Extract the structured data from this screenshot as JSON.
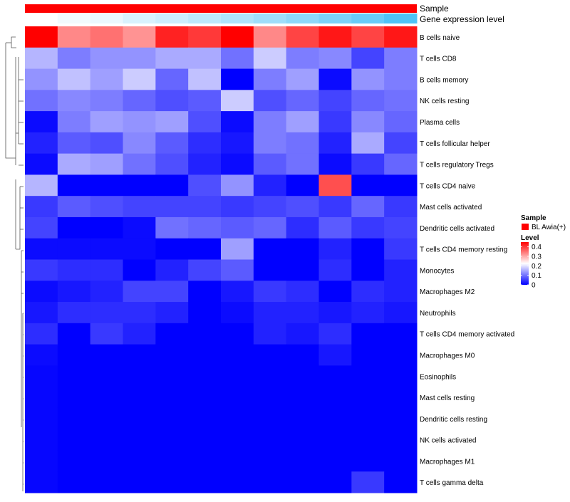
{
  "chart_data": {
    "type": "heatmap",
    "annotations": {
      "sample_label": "Sample",
      "gene_label": "Gene expression level"
    },
    "legend": {
      "sample_title": "Sample",
      "sample_item": "BL Awia(+)",
      "sample_color": "#ff0000",
      "level_title": "Level",
      "level_ticks": [
        0.4,
        0.3,
        0.2,
        0.1,
        0
      ],
      "level_tick_labels": [
        "0.4",
        "0.3",
        "0.2",
        "0.1",
        "0"
      ],
      "color_low": "#0000ff",
      "color_mid": "#ffffff",
      "color_high": "#ff0000",
      "range": [
        0,
        0.45
      ]
    },
    "columns": 12,
    "gene_expression_bar": [
      0.0,
      0.05,
      0.08,
      0.15,
      0.2,
      0.26,
      0.32,
      0.38,
      0.45,
      0.52,
      0.6,
      0.7
    ],
    "rows": [
      "B cells naive",
      "T cells CD8",
      "B cells memory",
      "NK cells resting",
      "Plasma cells",
      "T cells follicular helper",
      "T cells regulatory  Tregs",
      "T cells CD4 naive",
      "Mast cells activated",
      "Dendritic cells activated",
      "T cells CD4 memory resting",
      "Monocytes",
      "Macrophages M2",
      "Neutrophils",
      "T cells CD4 memory activated",
      "Macrophages M0",
      "Eosinophils",
      "Mast cells resting",
      "Dendritic cells resting",
      "NK cells activated",
      "Macrophages M1",
      "T cells gamma delta"
    ],
    "values": [
      [
        0.45,
        0.33,
        0.35,
        0.32,
        0.42,
        0.4,
        0.45,
        0.33,
        0.39,
        0.43,
        0.39,
        0.43
      ],
      [
        0.16,
        0.11,
        0.13,
        0.13,
        0.15,
        0.15,
        0.1,
        0.18,
        0.11,
        0.12,
        0.06,
        0.11
      ],
      [
        0.13,
        0.17,
        0.14,
        0.18,
        0.09,
        0.17,
        0.0,
        0.11,
        0.14,
        0.01,
        0.13,
        0.11
      ],
      [
        0.1,
        0.12,
        0.11,
        0.09,
        0.07,
        0.08,
        0.18,
        0.07,
        0.09,
        0.06,
        0.09,
        0.1
      ],
      [
        0.01,
        0.11,
        0.14,
        0.13,
        0.14,
        0.07,
        0.01,
        0.11,
        0.14,
        0.05,
        0.12,
        0.09
      ],
      [
        0.03,
        0.08,
        0.07,
        0.12,
        0.08,
        0.04,
        0.02,
        0.11,
        0.1,
        0.03,
        0.15,
        0.06
      ],
      [
        0.01,
        0.15,
        0.14,
        0.1,
        0.07,
        0.03,
        0.01,
        0.08,
        0.1,
        0.01,
        0.05,
        0.09
      ],
      [
        0.16,
        0.0,
        0.0,
        0.0,
        0.0,
        0.07,
        0.13,
        0.03,
        0.0,
        0.38,
        0.0,
        0.0
      ],
      [
        0.05,
        0.08,
        0.07,
        0.06,
        0.06,
        0.06,
        0.05,
        0.06,
        0.07,
        0.05,
        0.09,
        0.05
      ],
      [
        0.06,
        0.0,
        0.0,
        0.01,
        0.1,
        0.09,
        0.08,
        0.09,
        0.04,
        0.08,
        0.05,
        0.06
      ],
      [
        0.01,
        0.01,
        0.01,
        0.01,
        0.0,
        0.0,
        0.14,
        0.0,
        0.0,
        0.03,
        0.0,
        0.05
      ],
      [
        0.05,
        0.04,
        0.04,
        0.0,
        0.03,
        0.06,
        0.08,
        0.0,
        0.0,
        0.04,
        0.0,
        0.03
      ],
      [
        0.01,
        0.02,
        0.03,
        0.06,
        0.06,
        0.0,
        0.02,
        0.05,
        0.04,
        0.0,
        0.04,
        0.03
      ],
      [
        0.02,
        0.04,
        0.04,
        0.04,
        0.03,
        0.0,
        0.01,
        0.03,
        0.03,
        0.02,
        0.03,
        0.02
      ],
      [
        0.04,
        0.0,
        0.05,
        0.03,
        0.0,
        0.0,
        0.0,
        0.03,
        0.02,
        0.04,
        0.0,
        0.0
      ],
      [
        0.01,
        0.0,
        0.0,
        0.0,
        0.0,
        0.0,
        0.0,
        0.0,
        0.0,
        0.02,
        0.0,
        0.0
      ],
      [
        0.005,
        0.0,
        0.0,
        0.0,
        0.0,
        0.0,
        0.0,
        0.0,
        0.0,
        0.0,
        0.0,
        0.0
      ],
      [
        0.005,
        0.0,
        0.0,
        0.0,
        0.0,
        0.0,
        0.0,
        0.0,
        0.0,
        0.0,
        0.0,
        0.0
      ],
      [
        0.005,
        0.0,
        0.0,
        0.0,
        0.0,
        0.0,
        0.0,
        0.0,
        0.0,
        0.0,
        0.0,
        0.0
      ],
      [
        0.005,
        0.0,
        0.0,
        0.0,
        0.0,
        0.0,
        0.0,
        0.0,
        0.0,
        0.0,
        0.0,
        0.0
      ],
      [
        0.005,
        0.0,
        0.0,
        0.0,
        0.0,
        0.0,
        0.0,
        0.0,
        0.0,
        0.0,
        0.0,
        0.0
      ],
      [
        0.005,
        0.0,
        0.0,
        0.0,
        0.0,
        0.0,
        0.0,
        0.0,
        0.0,
        0.0,
        0.05,
        0.0
      ]
    ]
  }
}
